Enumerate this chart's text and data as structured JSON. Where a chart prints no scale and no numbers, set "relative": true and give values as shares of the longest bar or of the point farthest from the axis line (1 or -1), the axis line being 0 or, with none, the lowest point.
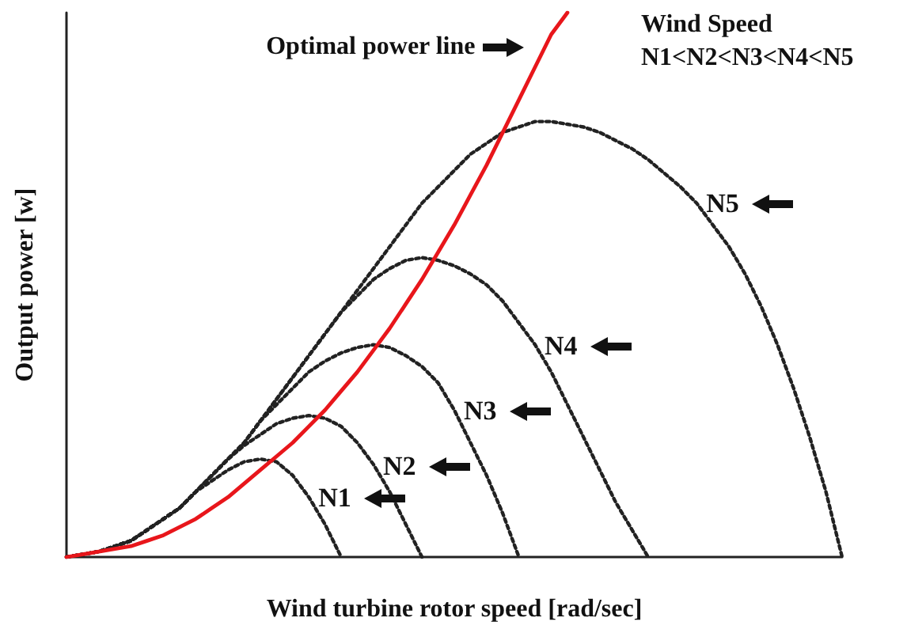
{
  "chart_data": {
    "type": "line",
    "relative": true,
    "xlabel": "Wind turbine rotor speed [rad/sec]",
    "ylabel": "Output power [w]",
    "tick_labels": false,
    "grid": false,
    "legend": false,
    "marker": "none",
    "annotations": [
      "Wind Speed",
      "N1<N2<N3<N4<N5"
    ],
    "categories": [
      null,
      null,
      null,
      null,
      null,
      null,
      null,
      null,
      null,
      null,
      null,
      null,
      null,
      null,
      null,
      null,
      null,
      null,
      null,
      null,
      null,
      null,
      null,
      null,
      null,
      null,
      null,
      null,
      null,
      null,
      null,
      null,
      null,
      null,
      null,
      null,
      null,
      null,
      null,
      null,
      null,
      null,
      null,
      null,
      null,
      null,
      null,
      null,
      null
    ],
    "series": [
      {
        "name": "N1",
        "color": "#222222",
        "line_style": "dotted",
        "values": [
          0,
          0.005,
          0.01,
          0.02,
          0.03,
          0.05,
          0.07,
          0.09,
          0.12,
          0.14,
          0.16,
          0.175,
          0.18,
          0.175,
          0.15,
          0.11,
          0.06,
          0,
          null,
          null,
          null,
          null,
          null,
          null,
          null,
          null,
          null,
          null,
          null,
          null,
          null,
          null,
          null,
          null,
          null,
          null,
          null,
          null,
          null,
          null,
          null,
          null,
          null,
          null,
          null,
          null,
          null,
          null,
          null
        ]
      },
      {
        "name": "N2",
        "color": "#222222",
        "line_style": "dotted",
        "values": [
          0,
          0.005,
          0.01,
          0.02,
          0.03,
          0.05,
          0.07,
          0.09,
          0.12,
          0.15,
          0.18,
          0.205,
          0.225,
          0.245,
          0.255,
          0.26,
          0.255,
          0.24,
          0.21,
          0.17,
          0.12,
          0.06,
          0,
          null,
          null,
          null,
          null,
          null,
          null,
          null,
          null,
          null,
          null,
          null,
          null,
          null,
          null,
          null,
          null,
          null,
          null,
          null,
          null,
          null,
          null,
          null,
          null,
          null,
          null
        ]
      },
      {
        "name": "N3",
        "color": "#222222",
        "line_style": "dotted",
        "values": [
          0,
          0.005,
          0.01,
          0.02,
          0.03,
          0.05,
          0.07,
          0.09,
          0.12,
          0.15,
          0.18,
          0.21,
          0.25,
          0.28,
          0.31,
          0.34,
          0.36,
          0.375,
          0.385,
          0.39,
          0.385,
          0.37,
          0.35,
          0.32,
          0.27,
          0.21,
          0.15,
          0.08,
          0,
          null,
          null,
          null,
          null,
          null,
          null,
          null,
          null,
          null,
          null,
          null,
          null,
          null,
          null,
          null,
          null,
          null,
          null,
          null,
          null
        ]
      },
      {
        "name": "N4",
        "color": "#222222",
        "line_style": "dotted",
        "values": [
          0,
          0.005,
          0.01,
          0.02,
          0.03,
          0.05,
          0.07,
          0.09,
          0.12,
          0.15,
          0.18,
          0.21,
          0.25,
          0.29,
          0.33,
          0.37,
          0.41,
          0.45,
          0.48,
          0.51,
          0.53,
          0.545,
          0.55,
          0.545,
          0.535,
          0.52,
          0.5,
          0.47,
          0.43,
          0.39,
          0.34,
          0.28,
          0.22,
          0.16,
          0.1,
          0.05,
          0,
          null,
          null,
          null,
          null,
          null,
          null,
          null,
          null,
          null,
          null,
          null,
          null
        ]
      },
      {
        "name": "N5",
        "color": "#222222",
        "line_style": "dotted",
        "values": [
          0,
          0.005,
          0.01,
          0.02,
          0.03,
          0.05,
          0.07,
          0.09,
          0.12,
          0.15,
          0.18,
          0.21,
          0.25,
          0.29,
          0.33,
          0.37,
          0.41,
          0.45,
          0.49,
          0.53,
          0.57,
          0.61,
          0.65,
          0.68,
          0.71,
          0.74,
          0.76,
          0.78,
          0.79,
          0.8,
          0.8,
          0.795,
          0.79,
          0.78,
          0.765,
          0.75,
          0.73,
          0.705,
          0.68,
          0.65,
          0.61,
          0.57,
          0.52,
          0.46,
          0.39,
          0.31,
          0.22,
          0.12,
          0
        ]
      },
      {
        "name": "Optimal power line",
        "color": "#e8161b",
        "line_style": "solid",
        "values": [
          0,
          0.005,
          0.01,
          0.015,
          0.02,
          0.03,
          0.04,
          0.055,
          0.07,
          0.09,
          0.11,
          0.135,
          0.16,
          0.185,
          0.21,
          0.24,
          0.27,
          0.305,
          0.34,
          0.38,
          0.42,
          0.465,
          0.51,
          0.56,
          0.61,
          0.665,
          0.72,
          0.78,
          0.84,
          0.9,
          0.96,
          1.0,
          null,
          null,
          null,
          null,
          null,
          null,
          null,
          null,
          null,
          null,
          null,
          null,
          null,
          null,
          null,
          null,
          null
        ]
      }
    ]
  }
}
